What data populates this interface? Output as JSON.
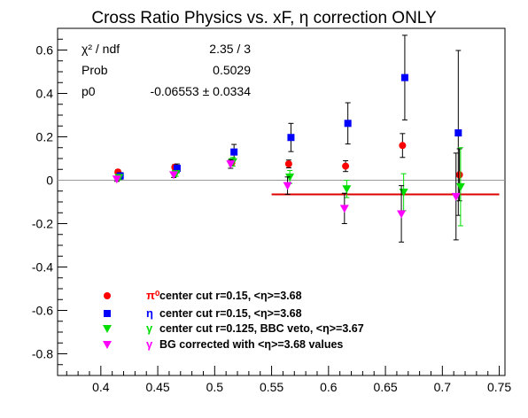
{
  "chart_data": {
    "type": "scatter",
    "title": "Cross Ratio Physics vs. xF, η correction ONLY",
    "xlabel": "",
    "ylabel": "",
    "xlim": [
      0.362,
      0.755
    ],
    "ylim": [
      -0.9,
      0.7
    ],
    "x_ticks": [
      0.4,
      0.45,
      0.5,
      0.55,
      0.6,
      0.65,
      0.7,
      0.75
    ],
    "x_tick_labels": [
      "0.4",
      "0.45",
      "0.5",
      "0.55",
      "0.6",
      "0.65",
      "0.7",
      "0.75"
    ],
    "y_ticks": [
      -0.8,
      -0.6,
      -0.4,
      -0.2,
      0,
      0.2,
      0.4,
      0.6
    ],
    "y_tick_labels": [
      "-0.8",
      "-0.6",
      "-0.4",
      "-0.2",
      "0",
      "0.2",
      "0.4",
      "0.6"
    ],
    "zero_line": 0,
    "fit_line": {
      "y": -0.0655,
      "x_range": [
        0.55,
        0.75
      ],
      "color": "#dd0000"
    },
    "stats_box": [
      {
        "label": "χ² / ndf",
        "value": "2.35 / 3"
      },
      {
        "label": "Prob",
        "value": "0.5029"
      },
      {
        "label": "p0",
        "value": "-0.06553 ± 0.0334"
      }
    ],
    "legend_position": "bottom-left",
    "series": [
      {
        "name": "π⁰ center cut r=0.15, <η>=3.68",
        "legend_symbol": "π⁰",
        "legend_text": "center cut r=0.15, <η>=3.68",
        "marker": "circle",
        "color": "#ff0000",
        "x": [
          0.415,
          0.465,
          0.515,
          0.565,
          0.615,
          0.665,
          0.715
        ],
        "y": [
          0.038,
          0.06,
          0.08,
          0.075,
          0.065,
          0.16,
          0.025
        ],
        "err": [
          0.01,
          0.012,
          0.015,
          0.018,
          0.025,
          0.055,
          0.12
        ]
      },
      {
        "name": "η center cut r=0.15, <η>=3.68",
        "legend_symbol": "η",
        "legend_text": "center cut r=0.15, <η>=3.68",
        "marker": "square",
        "color": "#0000ff",
        "x": [
          0.417,
          0.467,
          0.517,
          0.567,
          0.617,
          0.667,
          0.714
        ],
        "y": [
          0.02,
          0.055,
          0.13,
          0.197,
          0.262,
          0.473,
          0.218
        ],
        "err": [
          0.015,
          0.02,
          0.035,
          0.065,
          0.095,
          0.195,
          0.38
        ]
      },
      {
        "name": "γ center cut r=0.125, BBC veto, <η>=3.67",
        "legend_symbol": "γ",
        "legend_text": "center cut r=0.125, BBC veto, <η>=3.67",
        "marker": "triangle-down",
        "color": "#00dd00",
        "x": [
          0.416,
          0.466,
          0.516,
          0.566,
          0.616,
          0.666,
          0.716
        ],
        "y": [
          0.012,
          0.03,
          0.085,
          0.015,
          -0.04,
          -0.055,
          -0.03
        ],
        "err": [
          0.01,
          0.012,
          0.02,
          0.03,
          0.04,
          0.085,
          0.18
        ]
      },
      {
        "name": "γ BG corrected with <η>=3.68 values",
        "legend_symbol": "γ",
        "legend_text": "BG corrected with <η>=3.68 values",
        "marker": "triangle-down",
        "color": "#ff00ff",
        "x": [
          0.414,
          0.464,
          0.514,
          0.564,
          0.614,
          0.664,
          0.712
        ],
        "y": [
          0.005,
          0.025,
          0.075,
          -0.025,
          -0.13,
          -0.155,
          -0.075
        ],
        "err": [
          0.01,
          0.012,
          0.02,
          0.04,
          0.07,
          0.13,
          0.2
        ]
      }
    ]
  }
}
